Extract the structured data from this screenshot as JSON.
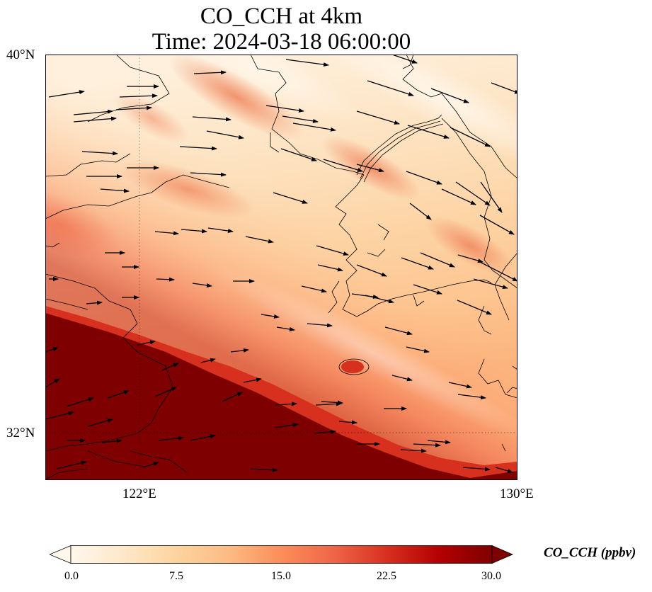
{
  "title": {
    "line1": "CO_CCH at 4km",
    "line2": "Time: 2024-03-18 06:00:00"
  },
  "axes": {
    "lat_labels": [
      "40°N",
      "32°N"
    ],
    "lon_labels": [
      "122°E",
      "130°E"
    ]
  },
  "colorbar": {
    "label": "CO_CCH (ppbv)",
    "ticks": [
      "0.0",
      "7.5",
      "15.0",
      "22.5",
      "30.0"
    ],
    "colormap": [
      "#fff7ec",
      "#fee8c8",
      "#fdd49e",
      "#fdbb84",
      "#fc8d59",
      "#ef6548",
      "#d7301f",
      "#b30000",
      "#7f0000"
    ]
  },
  "chart_data": {
    "type": "heatmap",
    "title": "CO_CCH at 4km / Time: 2024-03-18 06:00:00",
    "variable": "CO_CCH",
    "units": "ppbv",
    "level": "4km",
    "time": "2024-03-18 06:00:00",
    "lat_range": [
      31,
      40
    ],
    "lon_range": [
      120,
      130
    ],
    "gridlines": {
      "lat": [
        32,
        40
      ],
      "lon": [
        122,
        130
      ]
    },
    "vmin": 0.0,
    "vmax": 30.0,
    "colorbar_extend": "both",
    "overlay": "wind vectors"
  }
}
